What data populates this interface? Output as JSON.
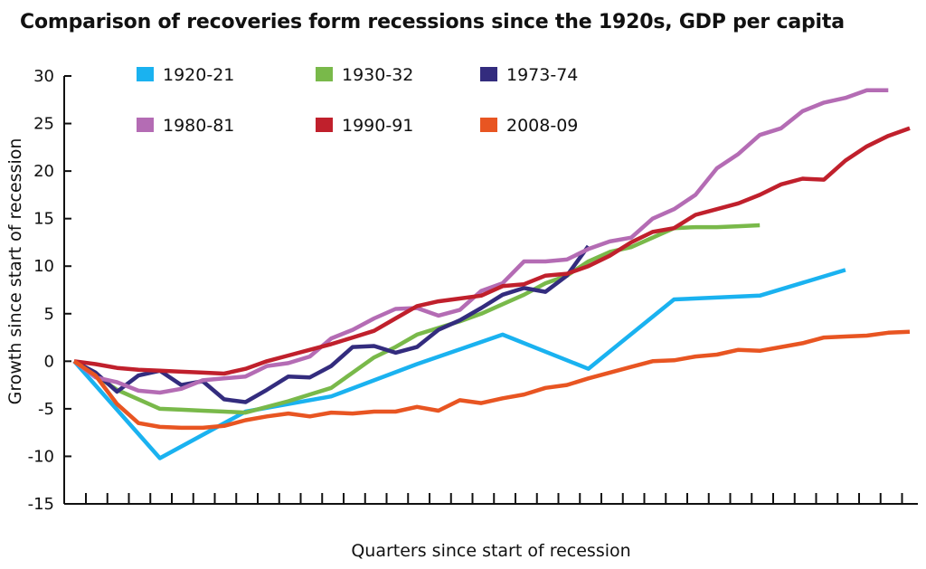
{
  "chart_data": {
    "type": "line",
    "title": "Comparison of recoveries form recessions since the 1920s, GDP per capita",
    "xlabel": "Quarters since start of recession",
    "ylabel": "Growth since start of recession",
    "ylim": [
      -15,
      30
    ],
    "yticks": [
      -15,
      -10,
      -5,
      0,
      5,
      10,
      15,
      20,
      25,
      30
    ],
    "xlim": [
      0,
      39
    ],
    "grid": false,
    "legend_position": "top",
    "series": [
      {
        "name": "1920-21",
        "color": "#1ab2f0",
        "x": [
          0,
          4,
          8,
          12,
          16,
          20,
          24,
          28,
          32,
          36
        ],
        "y": [
          0,
          -10.2,
          -5.3,
          -3.7,
          -0.3,
          2.8,
          -0.8,
          6.5,
          6.9,
          9.6
        ]
      },
      {
        "name": "1930-32",
        "color": "#79b94a",
        "x": [
          0,
          1,
          2,
          3,
          4,
          5,
          6,
          7,
          8,
          9,
          10,
          11,
          12,
          13,
          14,
          15,
          16,
          17,
          18,
          19,
          20,
          21,
          22,
          23,
          24,
          25,
          26,
          27,
          28,
          29,
          30,
          31,
          32
        ],
        "y": [
          0,
          -1.5,
          -3,
          -4,
          -5,
          -5.1,
          -5.2,
          -5.3,
          -5.4,
          -4.8,
          -4.2,
          -3.5,
          -2.8,
          -1.2,
          0.4,
          1.5,
          2.8,
          3.5,
          4.2,
          5,
          6,
          7,
          8.2,
          9,
          10.5,
          11.5,
          12,
          13,
          14,
          14.1,
          14.1,
          14.2,
          14.3
        ]
      },
      {
        "name": "1973-74",
        "color": "#332c7e",
        "x": [
          0,
          1,
          2,
          3,
          4,
          5,
          6,
          7,
          8,
          9,
          10,
          11,
          12,
          13,
          14,
          15,
          16,
          17,
          18,
          19,
          20,
          21,
          22,
          23,
          24
        ],
        "y": [
          0,
          -1.2,
          -3.2,
          -1.5,
          -1,
          -2.5,
          -2.1,
          -4,
          -4.3,
          -3,
          -1.6,
          -1.7,
          -0.5,
          1.5,
          1.6,
          0.9,
          1.5,
          3.3,
          4.3,
          5.6,
          7,
          7.7,
          7.3,
          9,
          12.1
        ]
      },
      {
        "name": "1980-81",
        "color": "#b46cb4",
        "x": [
          0,
          1,
          2,
          3,
          4,
          5,
          6,
          7,
          8,
          9,
          10,
          11,
          12,
          13,
          14,
          15,
          16,
          17,
          18,
          19,
          20,
          21,
          22,
          23,
          24,
          25,
          26,
          27,
          28,
          29,
          30,
          31,
          32,
          33,
          34,
          35,
          36,
          37,
          38
        ],
        "y": [
          0,
          -1.7,
          -2.2,
          -3.1,
          -3.3,
          -2.9,
          -2,
          -1.8,
          -1.6,
          -0.5,
          -0.2,
          0.5,
          2.4,
          3.3,
          4.5,
          5.5,
          5.6,
          4.8,
          5.4,
          7.4,
          8.2,
          10.5,
          10.5,
          10.7,
          11.8,
          12.6,
          13,
          15,
          16,
          17.5,
          20.3,
          21.8,
          23.8,
          24.5,
          26.3,
          27.2,
          27.7,
          28.5,
          28.5
        ]
      },
      {
        "name": "1990-91",
        "color": "#c0202c",
        "x": [
          0,
          1,
          2,
          3,
          4,
          5,
          6,
          7,
          8,
          9,
          10,
          11,
          12,
          13,
          14,
          15,
          16,
          17,
          18,
          19,
          20,
          21,
          22,
          23,
          24,
          25,
          26,
          27,
          28,
          29,
          30,
          31,
          32,
          33,
          34,
          35,
          36,
          37,
          38,
          39
        ],
        "y": [
          0,
          -0.3,
          -0.7,
          -0.9,
          -1,
          -1.1,
          -1.2,
          -1.3,
          -0.8,
          0,
          0.6,
          1.2,
          1.8,
          2.5,
          3.2,
          4.5,
          5.8,
          6.3,
          6.6,
          6.9,
          7.9,
          8.1,
          9,
          9.2,
          10,
          11.1,
          12.5,
          13.6,
          14,
          15.4,
          16,
          16.6,
          17.5,
          18.6,
          19.2,
          19.1,
          21.1,
          22.6,
          23.7,
          24.5
        ]
      },
      {
        "name": "2008-09",
        "color": "#e85522",
        "x": [
          0,
          1,
          2,
          3,
          4,
          5,
          6,
          7,
          8,
          9,
          10,
          11,
          12,
          13,
          14,
          15,
          16,
          17,
          18,
          19,
          20,
          21,
          22,
          23,
          24,
          25,
          26,
          27,
          28,
          29,
          30,
          31,
          32,
          33,
          34,
          35,
          36,
          37,
          38,
          39
        ],
        "y": [
          0,
          -1.5,
          -4.5,
          -6.5,
          -6.9,
          -7,
          -7,
          -6.8,
          -6.2,
          -5.8,
          -5.5,
          -5.8,
          -5.4,
          -5.5,
          -5.3,
          -5.3,
          -4.8,
          -5.2,
          -4.1,
          -4.4,
          -3.9,
          -3.5,
          -2.8,
          -2.5,
          -1.8,
          -1.2,
          -0.6,
          0,
          0.1,
          0.5,
          0.7,
          1.2,
          1.1,
          1.5,
          1.9,
          2.5,
          2.6,
          2.7,
          3,
          3.1
        ]
      }
    ]
  }
}
